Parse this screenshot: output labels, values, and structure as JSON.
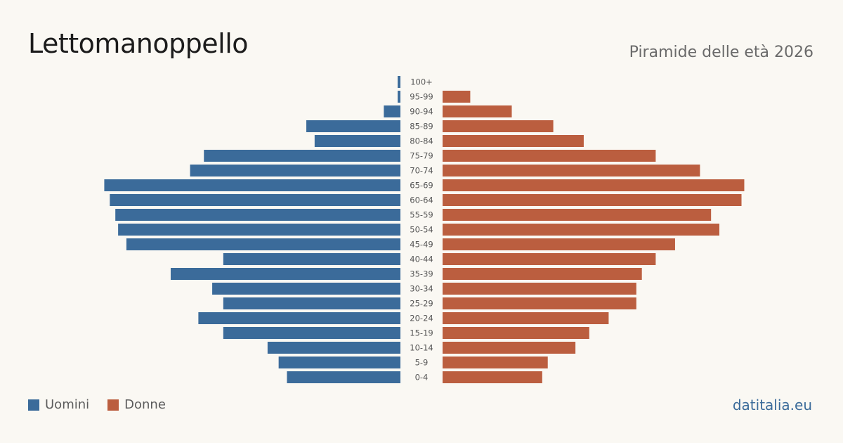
{
  "title": "Lettomanoppello",
  "subtitle": "Piramide delle età 2026",
  "brand": "datitalia.eu",
  "colors": {
    "men": "#3b6b9a",
    "women": "#bb5e3f"
  },
  "legend": {
    "men_label": "Uomini",
    "women_label": "Donne"
  },
  "chart_data": {
    "type": "bar",
    "orientation": "horizontal-pyramid",
    "categories": [
      "100+",
      "95-99",
      "90-94",
      "85-89",
      "80-84",
      "75-79",
      "70-74",
      "65-69",
      "60-64",
      "55-59",
      "50-54",
      "45-49",
      "40-44",
      "35-39",
      "30-34",
      "25-29",
      "20-24",
      "15-19",
      "10-14",
      "5-9",
      "0-4"
    ],
    "series": [
      {
        "name": "Uomini",
        "values": [
          1,
          1,
          6,
          34,
          31,
          71,
          76,
          107,
          105,
          103,
          102,
          99,
          64,
          83,
          68,
          64,
          73,
          64,
          48,
          44,
          41
        ]
      },
      {
        "name": "Donne",
        "values": [
          0,
          10,
          25,
          40,
          51,
          77,
          93,
          109,
          108,
          97,
          100,
          84,
          77,
          72,
          70,
          70,
          60,
          53,
          48,
          38,
          36
        ]
      }
    ],
    "legend": "bottom-left",
    "grid": false
  }
}
